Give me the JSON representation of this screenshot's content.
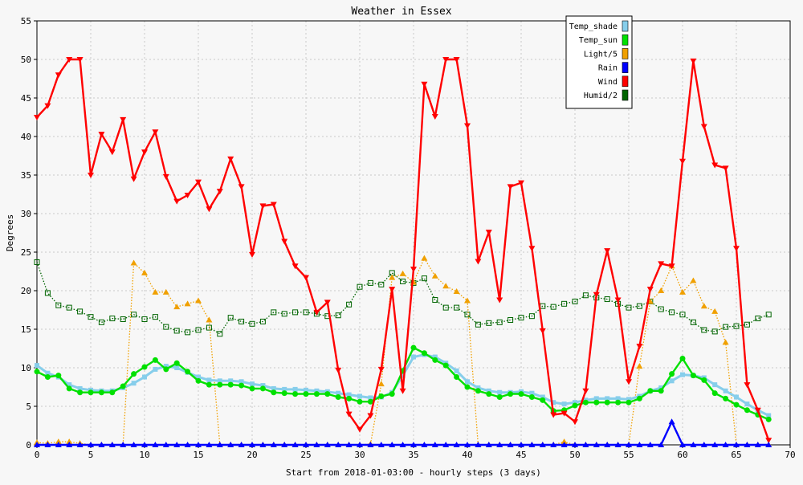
{
  "chart_data": {
    "type": "line",
    "title": "Weather in Essex",
    "xlabel": "Start from 2018-01-03:00 - hourly steps (3 days)",
    "ylabel": "Degrees",
    "xlim": [
      0,
      70
    ],
    "ylim": [
      0,
      55
    ],
    "x_ticks": [
      0,
      5,
      10,
      15,
      20,
      25,
      30,
      35,
      40,
      45,
      50,
      55,
      60,
      65,
      70
    ],
    "y_ticks": [
      0,
      5,
      10,
      15,
      20,
      25,
      30,
      35,
      40,
      45,
      50,
      55
    ],
    "grid": true,
    "legend_position": "top-right",
    "x": [
      0,
      1,
      2,
      3,
      4,
      5,
      6,
      7,
      8,
      9,
      10,
      11,
      12,
      13,
      14,
      15,
      16,
      17,
      18,
      19,
      20,
      21,
      22,
      23,
      24,
      25,
      26,
      27,
      28,
      29,
      30,
      31,
      32,
      33,
      34,
      35,
      36,
      37,
      38,
      39,
      40,
      41,
      42,
      43,
      44,
      45,
      46,
      47,
      48,
      49,
      50,
      51,
      52,
      53,
      54,
      55,
      56,
      57,
      58,
      59,
      60,
      61,
      62,
      63,
      64,
      65,
      66,
      67,
      68
    ],
    "series": [
      {
        "name": "Temp_shade",
        "color": "#87ceeb",
        "marker": "square",
        "style": "solid",
        "values": [
          10.3,
          9.3,
          8.8,
          7.8,
          7.3,
          7.1,
          7.0,
          7.0,
          7.4,
          8.0,
          8.8,
          9.8,
          10.2,
          10.0,
          9.4,
          8.8,
          8.4,
          8.3,
          8.3,
          8.2,
          7.9,
          7.7,
          7.3,
          7.2,
          7.2,
          7.1,
          7.0,
          6.9,
          6.7,
          6.5,
          6.3,
          6.1,
          6.2,
          6.8,
          9.0,
          11.4,
          11.7,
          11.4,
          10.6,
          9.6,
          8.2,
          7.4,
          7.0,
          6.8,
          6.8,
          6.9,
          6.7,
          6.2,
          5.5,
          5.3,
          5.5,
          5.8,
          6.0,
          6.0,
          6.0,
          5.9,
          6.3,
          7.0,
          7.4,
          8.3,
          9.1,
          9.0,
          8.7,
          7.8,
          7.0,
          6.2,
          5.3,
          4.5,
          3.8
        ]
      },
      {
        "name": "Temp_sun",
        "color": "#00e000",
        "marker": "circle",
        "style": "solid",
        "values": [
          9.5,
          8.8,
          9.0,
          7.3,
          6.8,
          6.8,
          6.8,
          6.8,
          7.6,
          9.2,
          10.1,
          11.0,
          9.8,
          10.6,
          9.5,
          8.3,
          7.8,
          7.8,
          7.8,
          7.7,
          7.3,
          7.3,
          6.8,
          6.7,
          6.6,
          6.6,
          6.6,
          6.6,
          6.2,
          6.0,
          5.6,
          5.6,
          6.3,
          6.6,
          9.6,
          12.6,
          11.9,
          11.0,
          10.3,
          8.8,
          7.5,
          7.0,
          6.6,
          6.2,
          6.6,
          6.6,
          6.2,
          5.8,
          4.4,
          4.5,
          5.1,
          5.5,
          5.5,
          5.5,
          5.5,
          5.5,
          6.0,
          7.0,
          7.0,
          9.2,
          11.2,
          9.0,
          8.4,
          6.7,
          6.0,
          5.2,
          4.5,
          3.9,
          3.3
        ]
      },
      {
        "name": "Light/5",
        "color": "#f0a000",
        "marker": "triangle",
        "style": "dotted",
        "values": [
          0.3,
          0.2,
          0.4,
          0.4,
          0.2,
          0,
          0,
          0,
          0,
          23.6,
          22.3,
          19.8,
          19.8,
          17.9,
          18.3,
          18.7,
          16.2,
          0,
          0,
          0,
          0,
          0,
          0,
          0,
          0,
          0,
          0,
          0,
          0,
          0,
          0,
          0.1,
          7.9,
          21.7,
          22.2,
          21.1,
          24.2,
          21.9,
          20.6,
          19.9,
          18.7,
          0,
          0,
          0,
          0,
          0,
          0,
          0,
          0,
          0.4,
          0,
          0,
          0,
          0,
          0,
          0,
          10.2,
          18.6,
          20.0,
          23.2,
          19.8,
          21.3,
          18.0,
          17.3,
          13.3,
          0,
          0,
          0,
          0
        ]
      },
      {
        "name": "Rain",
        "color": "#0000ff",
        "marker": "triangle",
        "style": "solid",
        "values": [
          0,
          0,
          0,
          0,
          0,
          0,
          0,
          0,
          0,
          0,
          0,
          0,
          0,
          0,
          0,
          0,
          0,
          0,
          0,
          0,
          0,
          0,
          0,
          0,
          0,
          0,
          0,
          0,
          0,
          0,
          0,
          0,
          0,
          0,
          0,
          0,
          0,
          0,
          0,
          0,
          0,
          0,
          0,
          0,
          0,
          0,
          0,
          0,
          0,
          0,
          0,
          0,
          0,
          0,
          0,
          0,
          0,
          0,
          0,
          3.0,
          0,
          0,
          0,
          0,
          0,
          0,
          0,
          0,
          0
        ]
      },
      {
        "name": "Wind",
        "color": "#ff0000",
        "marker": "triangle-down",
        "style": "solid",
        "values": [
          42.5,
          44.0,
          48.0,
          50.0,
          50.0,
          35.0,
          40.3,
          38.0,
          42.2,
          34.5,
          38.0,
          40.6,
          34.8,
          31.6,
          32.4,
          34.1,
          30.6,
          32.9,
          37.1,
          33.5,
          24.7,
          31.0,
          31.2,
          26.4,
          23.2,
          21.7,
          17.2,
          18.5,
          9.7,
          4.0,
          2.0,
          3.8,
          9.8,
          20.2,
          7.0,
          22.8,
          46.8,
          42.6,
          50.0,
          50.0,
          41.4,
          23.8,
          27.6,
          18.8,
          33.5,
          34.0,
          25.5,
          14.8,
          3.9,
          4.1,
          3.0,
          7.0,
          19.5,
          25.2,
          18.8,
          8.2,
          12.8,
          20.2,
          23.5,
          23.2,
          36.8,
          49.8,
          41.3,
          36.3,
          35.9,
          25.5,
          7.8,
          4.5,
          0.6
        ]
      },
      {
        "name": "Humid/2",
        "color": "#006400",
        "marker": "square-open",
        "style": "dotted",
        "values": [
          23.7,
          19.7,
          18.1,
          17.8,
          17.3,
          16.6,
          15.9,
          16.4,
          16.3,
          16.9,
          16.3,
          16.6,
          15.3,
          14.8,
          14.6,
          14.9,
          15.2,
          14.4,
          16.5,
          16.0,
          15.7,
          16.0,
          17.2,
          17.0,
          17.2,
          17.2,
          17.0,
          16.7,
          16.8,
          18.2,
          20.5,
          21.0,
          20.8,
          22.3,
          21.2,
          21.0,
          21.6,
          18.8,
          17.8,
          17.8,
          16.9,
          15.6,
          15.8,
          15.9,
          16.2,
          16.5,
          16.7,
          18.0,
          17.9,
          18.3,
          18.6,
          19.4,
          19.1,
          18.9,
          18.3,
          17.8,
          18.0,
          18.6,
          17.6,
          17.2,
          16.9,
          15.9,
          14.9,
          14.7,
          15.3,
          15.4,
          15.6,
          16.4,
          16.9
        ]
      }
    ]
  }
}
